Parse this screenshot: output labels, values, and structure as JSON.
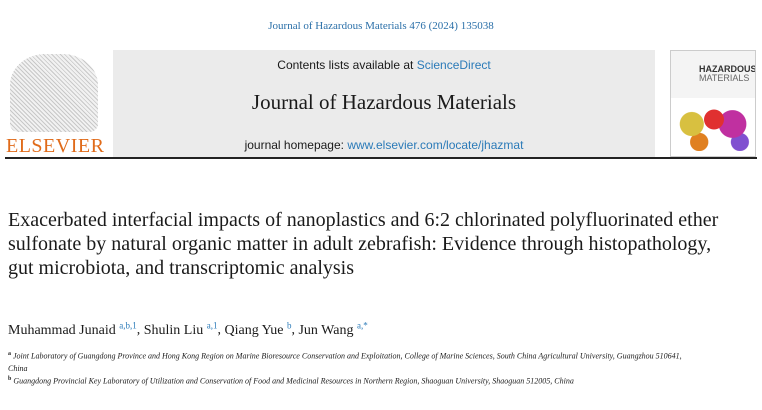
{
  "citation": "Journal of Hazardous Materials 476 (2024) 135038",
  "header": {
    "contents_prefix": "Contents lists available at ",
    "contents_link": "ScienceDirect",
    "journal_title": "Journal of Hazardous Materials",
    "homepage_prefix": "journal homepage: ",
    "homepage_link": "www.elsevier.com/locate/jhazmat",
    "publisher_logo": "ELSEVIER",
    "cover_text": "HAZARDOUS MATERIALS"
  },
  "article": {
    "title": "Exacerbated interfacial impacts of nanoplastics and 6:2 chlorinated polyfluorinated ether sulfonate by natural organic matter in adult zebrafish: Evidence through histopathology, gut microbiota, and transcriptomic analysis",
    "authors": [
      {
        "name": "Muhammad Junaid",
        "sup": "a,b,1"
      },
      {
        "name": "Shulin Liu",
        "sup": "a,1"
      },
      {
        "name": "Qiang Yue",
        "sup": "b"
      },
      {
        "name": "Jun Wang",
        "sup": "a,*"
      }
    ],
    "affiliations": [
      {
        "key": "a",
        "text": "Joint Laboratory of Guangdong Province and Hong Kong Region on Marine Bioresource Conservation and Exploitation, College of Marine Sciences, South China Agricultural University, Guangzhou 510641, China"
      },
      {
        "key": "b",
        "text": "Guangdong Provincial Key Laboratory of Utilization and Conservation of Food and Medicinal Resources in Northern Region, Shaoguan University, Shaoguan 512005, China"
      }
    ]
  }
}
